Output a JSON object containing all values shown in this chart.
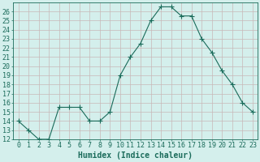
{
  "x": [
    0,
    1,
    2,
    3,
    4,
    5,
    6,
    7,
    8,
    9,
    10,
    11,
    12,
    13,
    14,
    15,
    16,
    17,
    18,
    19,
    20,
    21,
    22,
    23
  ],
  "y": [
    14,
    13,
    12,
    12,
    15.5,
    15.5,
    15.5,
    14,
    14,
    15,
    19,
    21,
    22.5,
    25,
    26.5,
    26.5,
    25.5,
    25.5,
    23,
    21.5,
    19.5,
    18,
    16,
    15
  ],
  "line_color": "#1a6b5a",
  "marker": "+",
  "marker_size": 4,
  "bg_color": "#d4efec",
  "grid_color_h": "#c8b8b8",
  "grid_color_v": "#c8b8b8",
  "xlabel": "Humidex (Indice chaleur)",
  "ylim": [
    12,
    27
  ],
  "xlim": [
    -0.5,
    23.5
  ],
  "yticks": [
    12,
    13,
    14,
    15,
    16,
    17,
    18,
    19,
    20,
    21,
    22,
    23,
    24,
    25,
    26
  ],
  "xticks": [
    0,
    1,
    2,
    3,
    4,
    5,
    6,
    7,
    8,
    9,
    10,
    11,
    12,
    13,
    14,
    15,
    16,
    17,
    18,
    19,
    20,
    21,
    22,
    23
  ],
  "xtick_labels": [
    "0",
    "1",
    "2",
    "3",
    "4",
    "5",
    "6",
    "7",
    "8",
    "9",
    "10",
    "11",
    "12",
    "13",
    "14",
    "15",
    "16",
    "17",
    "18",
    "19",
    "20",
    "21",
    "22",
    "23"
  ],
  "tick_color": "#1a6b5a",
  "label_color": "#1a6b5a",
  "axis_color": "#1a6b5a",
  "font_size": 6,
  "xlabel_font_size": 7,
  "linewidth": 0.8,
  "marker_linewidth": 0.8
}
